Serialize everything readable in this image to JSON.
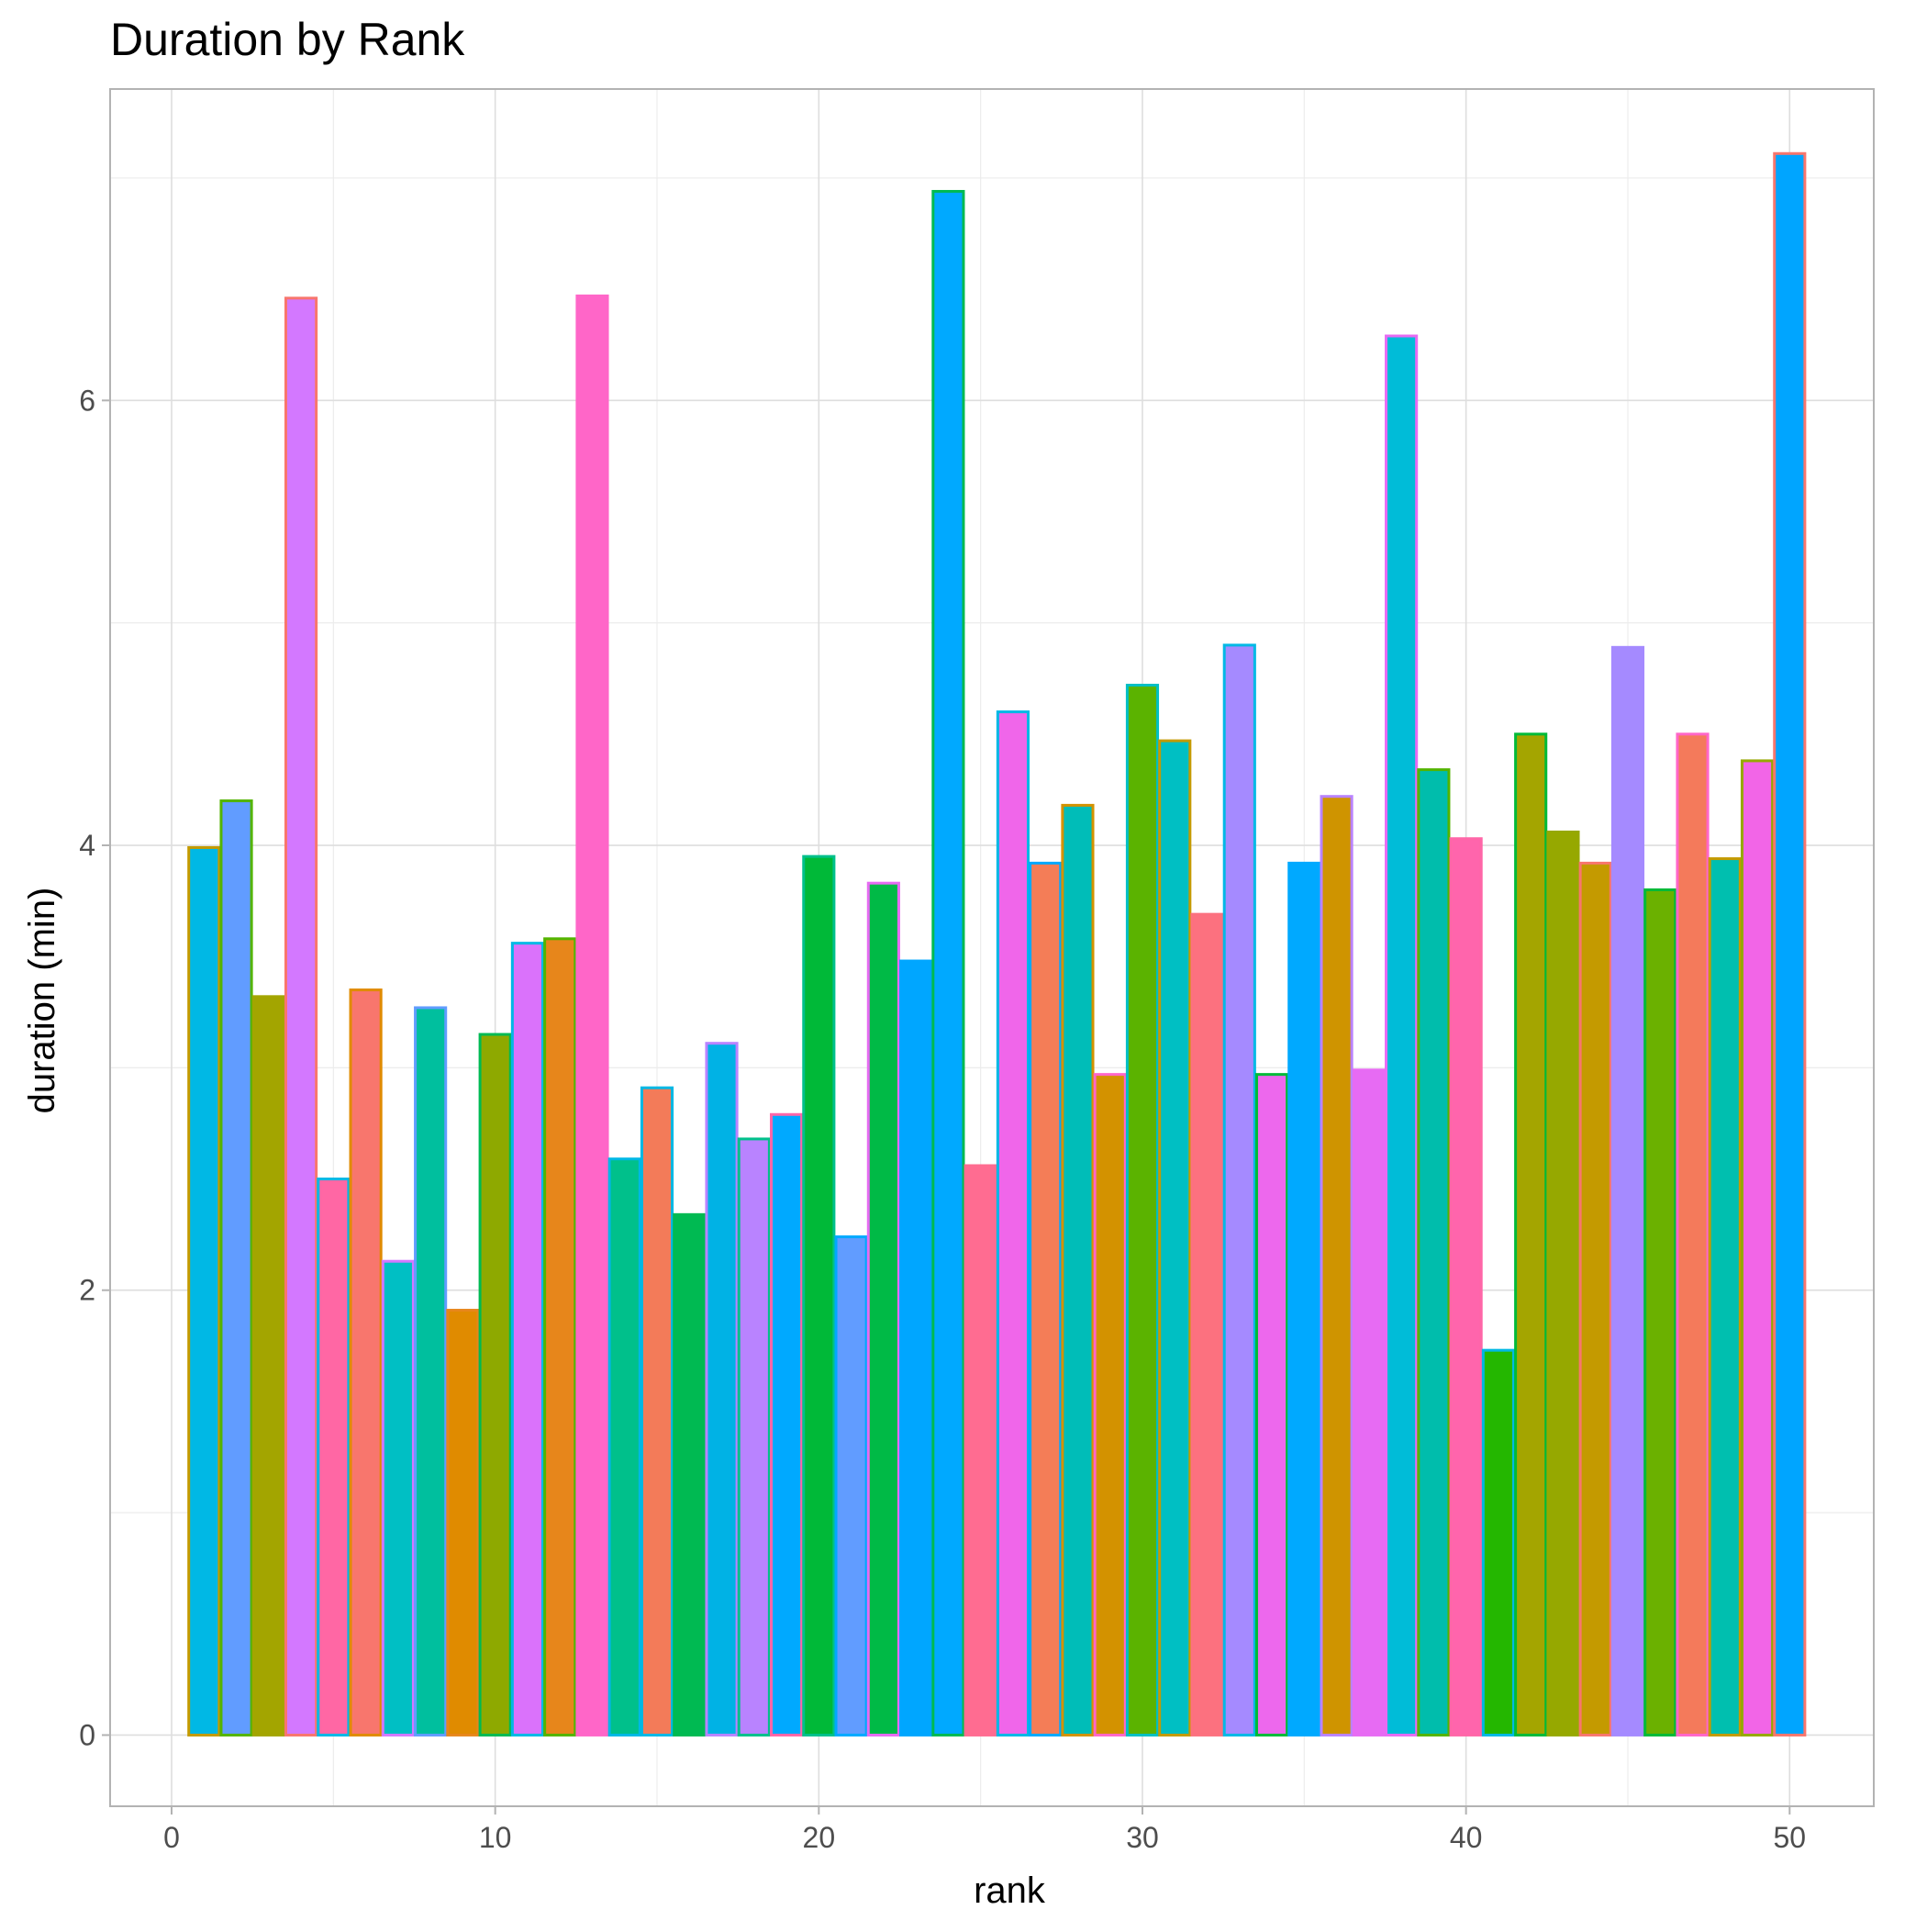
{
  "chart_data": {
    "type": "bar",
    "title": "Duration by Rank",
    "xlabel": "rank",
    "ylabel": "duration (min)",
    "xlim": [
      -1.9,
      52.6
    ],
    "ylim": [
      -0.32,
      7.4
    ],
    "x_ticks": [
      0,
      10,
      20,
      30,
      40,
      50
    ],
    "y_ticks": [
      0,
      2,
      4,
      6
    ],
    "grid": true,
    "legend": "none",
    "x": [
      1,
      2,
      3,
      4,
      5,
      6,
      7,
      8,
      9,
      10,
      11,
      12,
      13,
      14,
      15,
      16,
      17,
      18,
      19,
      20,
      21,
      22,
      23,
      24,
      25,
      26,
      27,
      28,
      29,
      30,
      31,
      32,
      33,
      34,
      35,
      36,
      37,
      38,
      39,
      40,
      41,
      42,
      43,
      44,
      45,
      46,
      47,
      48,
      49,
      50
    ],
    "values": [
      3.99,
      4.2,
      3.32,
      6.46,
      2.5,
      3.35,
      2.13,
      3.27,
      1.91,
      3.15,
      3.56,
      3.58,
      6.47,
      2.59,
      2.91,
      2.34,
      3.11,
      2.68,
      2.79,
      3.95,
      2.24,
      3.83,
      3.48,
      6.94,
      2.56,
      4.6,
      3.92,
      4.18,
      2.97,
      4.72,
      4.47,
      3.69,
      4.9,
      2.97,
      3.92,
      4.22,
      2.99,
      6.29,
      4.34,
      4.03,
      1.73,
      4.5,
      4.06,
      3.92,
      4.89,
      3.8,
      4.5,
      3.94,
      4.38,
      7.11
    ],
    "fill_colors": [
      "#00b8e5",
      "#619cff",
      "#a3a500",
      "#d378ff",
      "#ff67a4",
      "#f8766d",
      "#00bfc4",
      "#00bf9e",
      "#e08b00",
      "#8ea900",
      "#da72fb",
      "#e7861b",
      "#ff66c8",
      "#00c08b",
      "#f37b59",
      "#00ba52",
      "#00b2e5",
      "#b983ff",
      "#00a9ff",
      "#00b938",
      "#619cff",
      "#00ba46",
      "#00a6ff",
      "#00a9ff",
      "#ff6c91",
      "#f066ea",
      "#f47d57",
      "#00bdb8",
      "#d39200",
      "#5bb300",
      "#00bfc3",
      "#fc717f",
      "#a58aff",
      "#ed68ed",
      "#00a9ff",
      "#cf9400",
      "#e76bf3",
      "#00bcd8",
      "#00bdac",
      "#ff65ac",
      "#24b700",
      "#a4a500",
      "#96a800",
      "#c49a00",
      "#a58aff",
      "#6bb100",
      "#f47a5b",
      "#00bfaf",
      "#f265e7",
      "#00a5ff"
    ],
    "outline_colors": [
      "#c49a00",
      "#53b400",
      "#a3a500",
      "#f8766d",
      "#00b8e5",
      "#e08b00",
      "#d378ff",
      "#619cff",
      "#e7861b",
      "#00ba52",
      "#00b8e5",
      "#53b400",
      "#ff66c8",
      "#00b8e5",
      "#00b8e5",
      "#00ba52",
      "#b983ff",
      "#00c08b",
      "#ff66a8",
      "#00c08b",
      "#00a9ff",
      "#e76bf3",
      "#00a6ff",
      "#00ba52",
      "#ff6c91",
      "#00b8e5",
      "#00a9ff",
      "#d39200",
      "#ff66c8",
      "#00bfc4",
      "#c49a00",
      "#fc717f",
      "#00b8e5",
      "#00ba38",
      "#00a9ff",
      "#b983ff",
      "#e76bf3",
      "#e76bf3",
      "#53b400",
      "#ff66a8",
      "#00b8e5",
      "#00ba38",
      "#96a800",
      "#f8766d",
      "#a58aff",
      "#00ba38",
      "#ff66c8",
      "#c49a00",
      "#96a800",
      "#f8766d"
    ]
  }
}
